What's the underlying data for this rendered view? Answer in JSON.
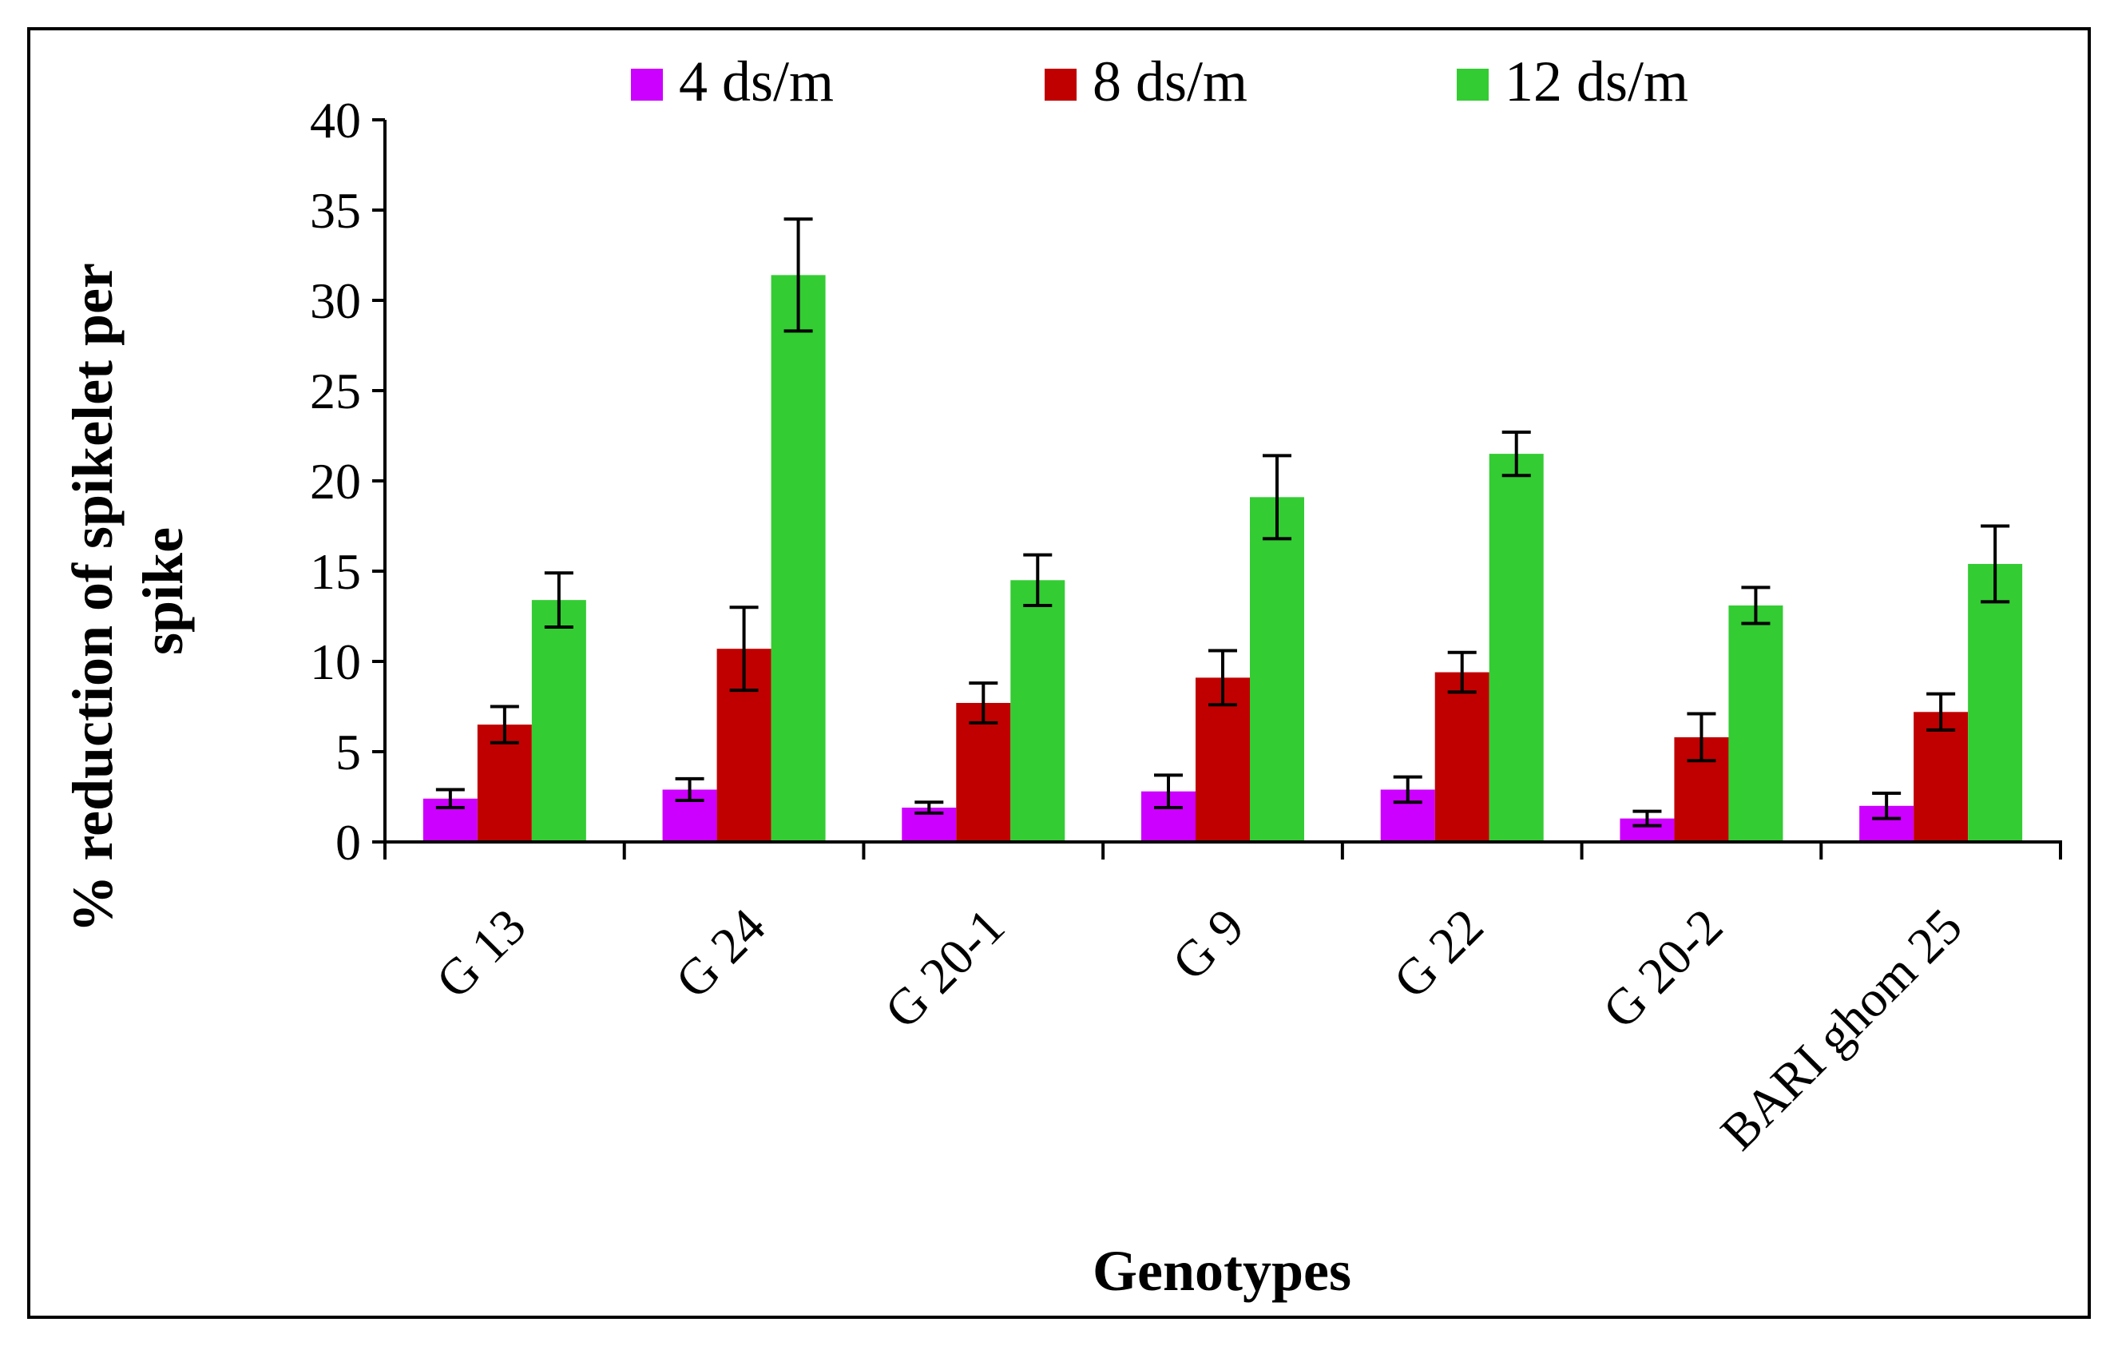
{
  "chart_data": {
    "type": "bar",
    "title": "",
    "xlabel": "Genotypes",
    "ylabel_lines": [
      "% reduction of spikelet per",
      "spike"
    ],
    "ylim": [
      0,
      40
    ],
    "yticks": [
      0,
      5,
      10,
      15,
      20,
      25,
      30,
      35,
      40
    ],
    "grid": false,
    "legend_position": "top",
    "categories": [
      "G 13",
      "G 24",
      "G 20-1",
      "G 9",
      "G 22",
      "G 20-2",
      "BARI ghom 25"
    ],
    "series": [
      {
        "name": "4 ds/m",
        "color": "#cc00ff",
        "values": [
          2.4,
          2.9,
          1.9,
          2.8,
          2.9,
          1.3,
          2.0
        ],
        "errors": [
          0.5,
          0.6,
          0.3,
          0.9,
          0.7,
          0.4,
          0.7
        ]
      },
      {
        "name": "8 ds/m",
        "color": "#c00000",
        "values": [
          6.5,
          10.7,
          7.7,
          9.1,
          9.4,
          5.8,
          7.2
        ],
        "errors": [
          1.0,
          2.3,
          1.1,
          1.5,
          1.1,
          1.3,
          1.0
        ]
      },
      {
        "name": "12 ds/m",
        "color": "#33cc33",
        "values": [
          13.4,
          31.4,
          14.5,
          19.1,
          21.5,
          13.1,
          15.4
        ],
        "errors": [
          1.5,
          3.1,
          1.4,
          2.3,
          1.2,
          1.0,
          2.1
        ]
      }
    ]
  }
}
